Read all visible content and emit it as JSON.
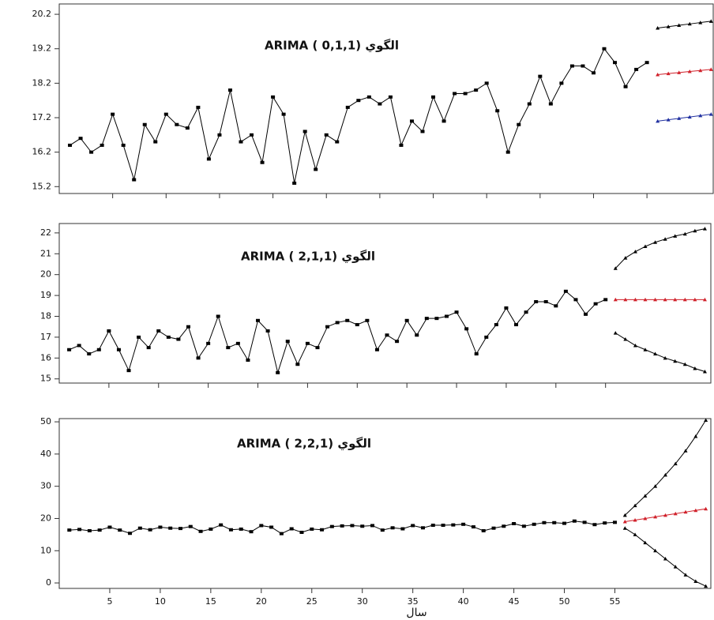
{
  "chart_data": [
    {
      "type": "line",
      "title": "ARIMA ( 0,1,1) الگوي",
      "xlim": [
        0,
        61.2
      ],
      "ylim": [
        15.0,
        20.5
      ],
      "yticks": [
        15.2,
        16.2,
        17.2,
        18.2,
        19.2,
        20.2
      ],
      "xticks": [
        5,
        10,
        15,
        20,
        25,
        30,
        35,
        40,
        45,
        50,
        55
      ],
      "series": [
        {
          "color": "#000000",
          "marker": "square",
          "x": [
            1,
            2,
            3,
            4,
            5,
            6,
            7,
            8,
            9,
            10,
            11,
            12,
            13,
            14,
            15,
            16,
            17,
            18,
            19,
            20,
            21,
            22,
            23,
            24,
            25,
            26,
            27,
            28,
            29,
            30,
            31,
            32,
            33,
            34,
            35,
            36,
            37,
            38,
            39,
            40,
            41,
            42,
            43,
            44,
            45,
            46,
            47,
            48,
            49,
            50,
            51,
            52,
            53,
            54,
            55
          ],
          "values": [
            16.4,
            16.6,
            16.2,
            16.4,
            17.3,
            16.4,
            15.4,
            17.0,
            16.5,
            17.3,
            17.0,
            16.9,
            17.5,
            16.0,
            16.7,
            18.0,
            16.5,
            16.7,
            15.9,
            17.8,
            17.3,
            15.3,
            16.8,
            15.7,
            16.7,
            16.5,
            17.5,
            17.7,
            17.8,
            17.6,
            17.8,
            16.4,
            17.1,
            16.8,
            17.8,
            17.1,
            17.9,
            17.9,
            18.0,
            18.2,
            17.4,
            16.2,
            17.0,
            17.6,
            18.4,
            17.6,
            18.2,
            18.7,
            18.7,
            18.5,
            19.2,
            18.8,
            18.1,
            18.6,
            18.8
          ]
        },
        {
          "color": "#000000",
          "marker": "triangle",
          "x": [
            56,
            57,
            58,
            59,
            60,
            61
          ],
          "values": [
            19.8,
            19.84,
            19.88,
            19.92,
            19.96,
            20.0
          ]
        },
        {
          "color": "#d0202a",
          "marker": "triangle",
          "x": [
            56,
            57,
            58,
            59,
            60,
            61
          ],
          "values": [
            18.45,
            18.48,
            18.51,
            18.54,
            18.57,
            18.6
          ]
        },
        {
          "color": "#2030a0",
          "marker": "triangle",
          "x": [
            56,
            57,
            58,
            59,
            60,
            61
          ],
          "values": [
            17.1,
            17.14,
            17.18,
            17.22,
            17.26,
            17.3
          ]
        }
      ]
    },
    {
      "type": "line",
      "title": "ARIMA ( 2,1,1) الگوي",
      "xlim": [
        0,
        65.6
      ],
      "ylim": [
        14.8,
        22.45
      ],
      "yticks": [
        15,
        16,
        17,
        18,
        19,
        20,
        21,
        22
      ],
      "xticks": [
        5,
        10,
        15,
        20,
        25,
        30,
        35,
        40,
        45,
        50,
        55
      ],
      "series": [
        {
          "color": "#000000",
          "marker": "square",
          "x": [
            1,
            2,
            3,
            4,
            5,
            6,
            7,
            8,
            9,
            10,
            11,
            12,
            13,
            14,
            15,
            16,
            17,
            18,
            19,
            20,
            21,
            22,
            23,
            24,
            25,
            26,
            27,
            28,
            29,
            30,
            31,
            32,
            33,
            34,
            35,
            36,
            37,
            38,
            39,
            40,
            41,
            42,
            43,
            44,
            45,
            46,
            47,
            48,
            49,
            50,
            51,
            52,
            53,
            54,
            55
          ],
          "values": [
            16.4,
            16.6,
            16.2,
            16.4,
            17.3,
            16.4,
            15.4,
            17.0,
            16.5,
            17.3,
            17.0,
            16.9,
            17.5,
            16.0,
            16.7,
            18.0,
            16.5,
            16.7,
            15.9,
            17.8,
            17.3,
            15.3,
            16.8,
            15.7,
            16.7,
            16.5,
            17.5,
            17.7,
            17.8,
            17.6,
            17.8,
            16.4,
            17.1,
            16.8,
            17.8,
            17.1,
            17.9,
            17.9,
            18.0,
            18.2,
            17.4,
            16.2,
            17.0,
            17.6,
            18.4,
            17.6,
            18.2,
            18.7,
            18.7,
            18.5,
            19.2,
            18.8,
            18.1,
            18.6,
            18.8
          ]
        },
        {
          "color": "#000000",
          "marker": "triangle",
          "x": [
            56,
            57,
            58,
            59,
            60,
            61,
            62,
            63,
            64,
            65
          ],
          "values": [
            20.3,
            20.8,
            21.1,
            21.35,
            21.55,
            21.7,
            21.85,
            21.95,
            22.1,
            22.2
          ]
        },
        {
          "color": "#d0202a",
          "marker": "triangle",
          "x": [
            56,
            57,
            58,
            59,
            60,
            61,
            62,
            63,
            64,
            65
          ],
          "values": [
            18.8,
            18.8,
            18.8,
            18.8,
            18.8,
            18.8,
            18.8,
            18.8,
            18.8,
            18.8
          ]
        },
        {
          "color": "#000000",
          "marker": "triangle",
          "x": [
            56,
            57,
            58,
            59,
            60,
            61,
            62,
            63,
            64,
            65
          ],
          "values": [
            17.2,
            16.9,
            16.6,
            16.4,
            16.2,
            16.0,
            15.85,
            15.7,
            15.5,
            15.35
          ]
        }
      ]
    },
    {
      "type": "line",
      "title": "ARIMA ( 2,2,1) الگوي",
      "xlim": [
        0,
        64.5
      ],
      "ylim": [
        -1.7,
        51
      ],
      "yticks": [
        0,
        10,
        20,
        30,
        40,
        50
      ],
      "xticks": [
        5,
        10,
        15,
        20,
        25,
        30,
        35,
        40,
        45,
        50,
        55
      ],
      "show_xtick_labels": true,
      "xlabel": "سال",
      "series": [
        {
          "color": "#000000",
          "marker": "square",
          "x": [
            1,
            2,
            3,
            4,
            5,
            6,
            7,
            8,
            9,
            10,
            11,
            12,
            13,
            14,
            15,
            16,
            17,
            18,
            19,
            20,
            21,
            22,
            23,
            24,
            25,
            26,
            27,
            28,
            29,
            30,
            31,
            32,
            33,
            34,
            35,
            36,
            37,
            38,
            39,
            40,
            41,
            42,
            43,
            44,
            45,
            46,
            47,
            48,
            49,
            50,
            51,
            52,
            53,
            54,
            55
          ],
          "values": [
            16.4,
            16.6,
            16.2,
            16.4,
            17.3,
            16.4,
            15.4,
            17.0,
            16.5,
            17.3,
            17.0,
            16.9,
            17.5,
            16.0,
            16.7,
            18.0,
            16.5,
            16.7,
            15.9,
            17.8,
            17.3,
            15.3,
            16.8,
            15.7,
            16.7,
            16.5,
            17.5,
            17.7,
            17.8,
            17.6,
            17.8,
            16.4,
            17.1,
            16.8,
            17.8,
            17.1,
            17.9,
            17.9,
            18.0,
            18.2,
            17.4,
            16.2,
            17.0,
            17.6,
            18.4,
            17.6,
            18.2,
            18.7,
            18.7,
            18.5,
            19.2,
            18.8,
            18.1,
            18.6,
            18.8
          ]
        },
        {
          "color": "#000000",
          "marker": "triangle",
          "x": [
            56,
            57,
            58,
            59,
            60,
            61,
            62,
            63,
            64
          ],
          "values": [
            21,
            24,
            27,
            30,
            33.5,
            37,
            41,
            45.5,
            50.5
          ]
        },
        {
          "color": "#d0202a",
          "marker": "triangle",
          "x": [
            56,
            57,
            58,
            59,
            60,
            61,
            62,
            63,
            64
          ],
          "values": [
            19,
            19.5,
            20,
            20.5,
            21,
            21.5,
            22,
            22.5,
            23
          ]
        },
        {
          "color": "#000000",
          "marker": "triangle",
          "x": [
            56,
            57,
            58,
            59,
            60,
            61,
            62,
            63,
            64
          ],
          "values": [
            17,
            15,
            12.5,
            10,
            7.5,
            5,
            2.5,
            0.5,
            -1
          ]
        }
      ]
    }
  ]
}
